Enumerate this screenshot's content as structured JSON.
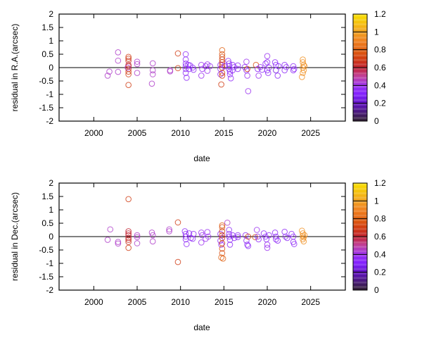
{
  "chart_data": [
    {
      "type": "scatter",
      "xlabel": "date",
      "ylabel": "residual in R.A.(arcsec)",
      "xlim": [
        1996,
        2029
      ],
      "ylim": [
        -2,
        2
      ],
      "xticks": [
        "2000",
        "2005",
        "2010",
        "2015",
        "2020",
        "2025"
      ],
      "yticks": [
        "-2",
        "-1.5",
        "-1",
        "-0.5",
        "0",
        "0.5",
        "1",
        "1.5",
        "2"
      ],
      "zero_line": true,
      "grid": false,
      "colorbar": {
        "ticks": [
          "0",
          "0.2",
          "0.4",
          "0.6",
          "0.8",
          "1",
          "1.2"
        ],
        "range": [
          0,
          1.2
        ],
        "placement": "right"
      },
      "points": [
        [
          2001.6,
          -0.3,
          0.45
        ],
        [
          2001.8,
          -0.15,
          0.45
        ],
        [
          2002.8,
          0.57,
          0.45
        ],
        [
          2002.8,
          0.26,
          0.45
        ],
        [
          2002.8,
          -0.16,
          0.45
        ],
        [
          2004.0,
          0.4,
          0.7
        ],
        [
          2004.0,
          0.33,
          0.7
        ],
        [
          2004.0,
          0.25,
          0.65
        ],
        [
          2004.0,
          0.1,
          0.6
        ],
        [
          2004.0,
          0.05,
          0.6
        ],
        [
          2004.0,
          -0.05,
          0.65
        ],
        [
          2004.0,
          -0.15,
          0.7
        ],
        [
          2004.0,
          -0.25,
          0.7
        ],
        [
          2004.0,
          -0.65,
          0.7
        ],
        [
          2003.9,
          0.0,
          0.45
        ],
        [
          2005.0,
          0.22,
          0.45
        ],
        [
          2005.0,
          0.13,
          0.45
        ],
        [
          2005.0,
          -0.2,
          0.45
        ],
        [
          2006.8,
          0.16,
          0.45
        ],
        [
          2006.8,
          -0.1,
          0.45
        ],
        [
          2006.8,
          -0.25,
          0.45
        ],
        [
          2006.7,
          -0.6,
          0.45
        ],
        [
          2008.8,
          -0.1,
          0.45
        ],
        [
          2008.8,
          -0.14,
          0.45
        ],
        [
          2009.7,
          0.53,
          0.7
        ],
        [
          2009.7,
          -0.02,
          0.7
        ],
        [
          2010.6,
          0.5,
          0.35
        ],
        [
          2010.6,
          0.3,
          0.35
        ],
        [
          2010.6,
          0.15,
          0.35
        ],
        [
          2010.6,
          0.05,
          0.35
        ],
        [
          2010.6,
          -0.05,
          0.35
        ],
        [
          2010.6,
          -0.2,
          0.35
        ],
        [
          2010.7,
          -0.38,
          0.35
        ],
        [
          2010.9,
          0.1,
          0.35
        ],
        [
          2011.0,
          -0.05,
          0.35
        ],
        [
          2011.1,
          0.08,
          0.35
        ],
        [
          2011.4,
          0.0,
          0.35
        ],
        [
          2011.5,
          -0.08,
          0.35
        ],
        [
          2012.4,
          0.1,
          0.4
        ],
        [
          2012.5,
          -0.05,
          0.4
        ],
        [
          2012.4,
          -0.3,
          0.4
        ],
        [
          2012.9,
          0.05,
          0.4
        ],
        [
          2013.1,
          0.12,
          0.4
        ],
        [
          2013.1,
          -0.12,
          0.4
        ],
        [
          2013.4,
          0.05,
          0.4
        ],
        [
          2014.6,
          0.1,
          0.35
        ],
        [
          2014.6,
          -0.25,
          0.35
        ],
        [
          2014.6,
          -0.05,
          0.35
        ],
        [
          2014.8,
          0.65,
          0.8
        ],
        [
          2014.8,
          0.5,
          0.75
        ],
        [
          2014.8,
          0.4,
          0.75
        ],
        [
          2014.8,
          0.3,
          0.7
        ],
        [
          2014.8,
          0.2,
          0.7
        ],
        [
          2014.8,
          0.1,
          0.65
        ],
        [
          2014.8,
          0.0,
          0.65
        ],
        [
          2014.8,
          -0.2,
          0.7
        ],
        [
          2014.8,
          -0.3,
          0.7
        ],
        [
          2014.7,
          -0.63,
          0.7
        ],
        [
          2015.1,
          0.05,
          0.35
        ],
        [
          2015.5,
          0.25,
          0.35
        ],
        [
          2015.6,
          0.15,
          0.35
        ],
        [
          2015.6,
          0.05,
          0.35
        ],
        [
          2015.6,
          -0.05,
          0.35
        ],
        [
          2015.7,
          -0.15,
          0.35
        ],
        [
          2015.7,
          -0.25,
          0.35
        ],
        [
          2015.8,
          -0.4,
          0.35
        ],
        [
          2016.0,
          0.1,
          0.35
        ],
        [
          2016.0,
          -0.1,
          0.35
        ],
        [
          2016.2,
          0.02,
          0.35
        ],
        [
          2016.6,
          0.08,
          0.35
        ],
        [
          2016.6,
          -0.05,
          0.35
        ],
        [
          2017.6,
          0.22,
          0.4
        ],
        [
          2017.6,
          -0.1,
          0.35
        ],
        [
          2017.7,
          -0.3,
          0.4
        ],
        [
          2017.8,
          -0.88,
          0.4
        ],
        [
          2017.7,
          -0.05,
          0.7
        ],
        [
          2017.4,
          0.02,
          0.35
        ],
        [
          2018.7,
          0.1,
          0.75
        ],
        [
          2018.9,
          -0.05,
          0.35
        ],
        [
          2019.0,
          -0.3,
          0.4
        ],
        [
          2019.2,
          0.02,
          0.35
        ],
        [
          2019.4,
          -0.08,
          0.35
        ],
        [
          2019.8,
          0.15,
          0.35
        ],
        [
          2020.0,
          0.43,
          0.4
        ],
        [
          2020.0,
          0.2,
          0.35
        ],
        [
          2020.0,
          -0.1,
          0.35
        ],
        [
          2020.1,
          -0.2,
          0.35
        ],
        [
          2020.2,
          0.0,
          0.35
        ],
        [
          2020.9,
          0.2,
          0.35
        ],
        [
          2021.0,
          0.1,
          0.35
        ],
        [
          2021.0,
          -0.1,
          0.25
        ],
        [
          2021.2,
          -0.3,
          0.35
        ],
        [
          2021.3,
          0.05,
          0.35
        ],
        [
          2022.0,
          0.1,
          0.35
        ],
        [
          2022.0,
          -0.1,
          0.35
        ],
        [
          2022.2,
          0.02,
          0.35
        ],
        [
          2023.0,
          0.05,
          0.35
        ],
        [
          2023.0,
          -0.1,
          0.35
        ],
        [
          2023.1,
          -0.05,
          0.35
        ],
        [
          2024.1,
          0.3,
          0.95
        ],
        [
          2024.1,
          0.2,
          0.95
        ],
        [
          2024.2,
          0.1,
          0.95
        ],
        [
          2024.1,
          0.0,
          0.95
        ],
        [
          2024.2,
          -0.1,
          0.95
        ],
        [
          2024.1,
          -0.2,
          0.95
        ],
        [
          2024.0,
          -0.35,
          0.95
        ],
        [
          2024.3,
          0.05,
          0.95
        ]
      ]
    },
    {
      "type": "scatter",
      "xlabel": "date",
      "ylabel": "residual in Dec.(arcsec)",
      "xlim": [
        1996,
        2029
      ],
      "ylim": [
        -2,
        2
      ],
      "xticks": [
        "2000",
        "2005",
        "2010",
        "2015",
        "2020",
        "2025"
      ],
      "yticks": [
        "-2",
        "-1.5",
        "-1",
        "-0.5",
        "0",
        "0.5",
        "1",
        "1.5",
        "2"
      ],
      "zero_line": true,
      "grid": false,
      "colorbar": {
        "ticks": [
          "0",
          "0.2",
          "0.4",
          "0.6",
          "0.8",
          "1",
          "1.2"
        ],
        "range": [
          0,
          1.2
        ],
        "placement": "right"
      },
      "points": [
        [
          2001.6,
          -0.12,
          0.45
        ],
        [
          2001.9,
          0.27,
          0.45
        ],
        [
          2002.8,
          -0.2,
          0.45
        ],
        [
          2002.8,
          -0.26,
          0.45
        ],
        [
          2004.0,
          1.4,
          0.7
        ],
        [
          2004.0,
          0.2,
          0.6
        ],
        [
          2004.0,
          0.12,
          0.6
        ],
        [
          2004.0,
          0.05,
          0.6
        ],
        [
          2004.0,
          -0.05,
          0.6
        ],
        [
          2004.0,
          -0.12,
          0.65
        ],
        [
          2004.0,
          -0.2,
          0.65
        ],
        [
          2004.0,
          -0.42,
          0.7
        ],
        [
          2005.0,
          0.05,
          0.45
        ],
        [
          2005.0,
          -0.02,
          0.45
        ],
        [
          2005.0,
          -0.25,
          0.45
        ],
        [
          2006.7,
          0.15,
          0.45
        ],
        [
          2006.8,
          0.05,
          0.45
        ],
        [
          2006.8,
          -0.18,
          0.45
        ],
        [
          2008.7,
          0.27,
          0.45
        ],
        [
          2008.7,
          0.2,
          0.45
        ],
        [
          2009.7,
          0.53,
          0.7
        ],
        [
          2009.7,
          -0.95,
          0.7
        ],
        [
          2010.5,
          0.2,
          0.35
        ],
        [
          2010.6,
          0.1,
          0.35
        ],
        [
          2010.6,
          0.0,
          0.35
        ],
        [
          2010.6,
          -0.1,
          0.35
        ],
        [
          2010.7,
          -0.28,
          0.35
        ],
        [
          2011.0,
          0.12,
          0.35
        ],
        [
          2011.2,
          -0.05,
          0.35
        ],
        [
          2011.5,
          0.1,
          0.35
        ],
        [
          2011.4,
          -0.08,
          0.35
        ],
        [
          2012.4,
          0.15,
          0.4
        ],
        [
          2012.5,
          0.05,
          0.4
        ],
        [
          2012.4,
          -0.22,
          0.4
        ],
        [
          2012.9,
          -0.08,
          0.4
        ],
        [
          2013.1,
          0.17,
          0.4
        ],
        [
          2013.2,
          0.0,
          0.4
        ],
        [
          2014.6,
          0.1,
          0.35
        ],
        [
          2014.6,
          -0.15,
          0.35
        ],
        [
          2014.7,
          -0.3,
          0.35
        ],
        [
          2014.8,
          0.42,
          0.8
        ],
        [
          2014.8,
          0.35,
          0.75
        ],
        [
          2014.8,
          0.2,
          0.7
        ],
        [
          2014.8,
          0.05,
          0.65
        ],
        [
          2014.8,
          -0.05,
          0.65
        ],
        [
          2014.8,
          -0.25,
          0.7
        ],
        [
          2014.8,
          -0.45,
          0.75
        ],
        [
          2014.8,
          -0.62,
          0.75
        ],
        [
          2014.7,
          -0.78,
          0.8
        ],
        [
          2014.9,
          -0.82,
          0.8
        ],
        [
          2015.4,
          0.52,
          0.45
        ],
        [
          2015.6,
          0.25,
          0.35
        ],
        [
          2015.6,
          0.1,
          0.35
        ],
        [
          2015.6,
          0.0,
          0.35
        ],
        [
          2015.7,
          -0.12,
          0.35
        ],
        [
          2015.7,
          -0.3,
          0.35
        ],
        [
          2016.0,
          0.05,
          0.35
        ],
        [
          2016.2,
          -0.05,
          0.35
        ],
        [
          2016.6,
          0.05,
          0.35
        ],
        [
          2016.6,
          -0.02,
          0.35
        ],
        [
          2017.5,
          0.05,
          0.35
        ],
        [
          2017.6,
          -0.15,
          0.35
        ],
        [
          2017.7,
          -0.3,
          0.35
        ],
        [
          2017.8,
          -0.35,
          0.35
        ],
        [
          2017.8,
          0.0,
          0.7
        ],
        [
          2018.6,
          -0.02,
          0.75
        ],
        [
          2018.8,
          0.25,
          0.4
        ],
        [
          2018.9,
          0.0,
          0.35
        ],
        [
          2019.0,
          -0.1,
          0.35
        ],
        [
          2019.6,
          0.12,
          0.35
        ],
        [
          2019.8,
          0.0,
          0.35
        ],
        [
          2019.9,
          -0.1,
          0.35
        ],
        [
          2020.0,
          -0.3,
          0.4
        ],
        [
          2020.0,
          -0.42,
          0.4
        ],
        [
          2020.2,
          0.05,
          0.35
        ],
        [
          2020.9,
          0.15,
          0.35
        ],
        [
          2021.0,
          0.0,
          0.35
        ],
        [
          2021.0,
          -0.1,
          0.35
        ],
        [
          2021.2,
          -0.15,
          0.35
        ],
        [
          2022.0,
          0.18,
          0.35
        ],
        [
          2022.1,
          0.0,
          0.35
        ],
        [
          2022.3,
          -0.05,
          0.35
        ],
        [
          2022.8,
          0.1,
          0.35
        ],
        [
          2023.0,
          0.0,
          0.35
        ],
        [
          2023.0,
          -0.2,
          0.35
        ],
        [
          2023.1,
          -0.28,
          0.35
        ],
        [
          2024.0,
          0.22,
          0.95
        ],
        [
          2024.1,
          0.12,
          0.95
        ],
        [
          2024.1,
          0.03,
          0.95
        ],
        [
          2024.2,
          -0.03,
          0.95
        ],
        [
          2024.1,
          -0.1,
          0.95
        ],
        [
          2024.2,
          -0.18,
          0.95
        ],
        [
          2024.3,
          0.05,
          0.95
        ]
      ]
    }
  ]
}
